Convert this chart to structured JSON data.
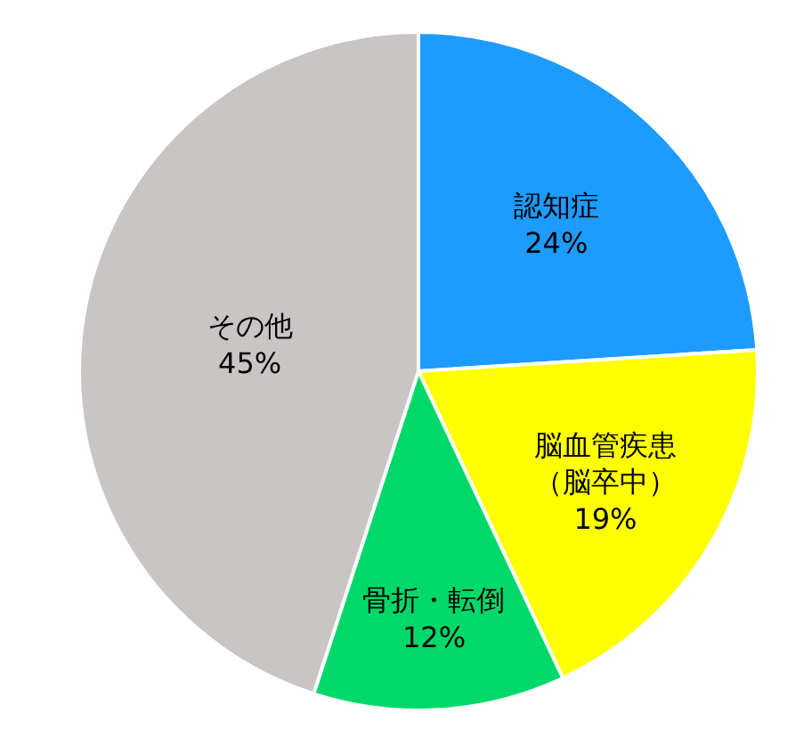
{
  "chart_data": {
    "type": "pie",
    "categories": [
      "認知症",
      "脳血管疾患（脳卒中）",
      "骨折・転倒",
      "その他"
    ],
    "values": [
      24,
      19,
      12,
      45
    ],
    "value_labels": [
      "24%",
      "19%",
      "12%",
      "45%"
    ],
    "colors": [
      "#1e9bff",
      "#ffff00",
      "#00d96a",
      "#c9c5c5"
    ],
    "legend": false
  }
}
